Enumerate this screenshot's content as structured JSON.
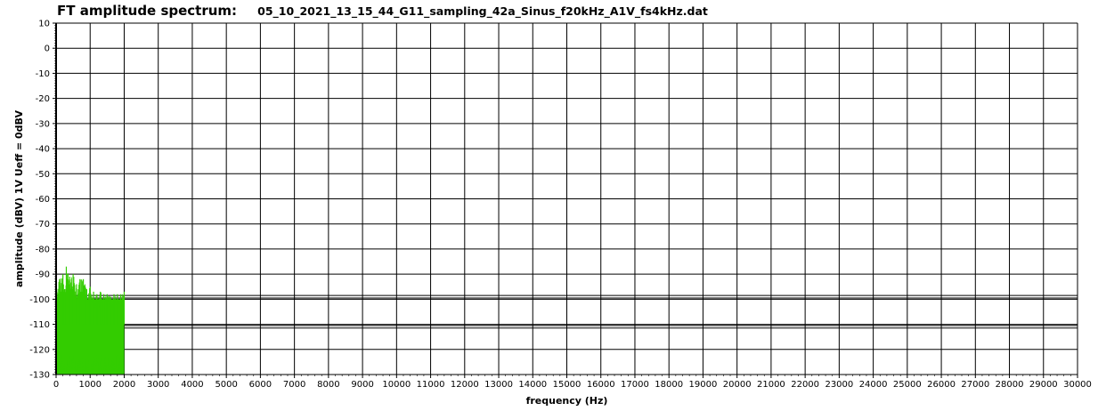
{
  "chart_data": {
    "type": "line",
    "title": "FT amplitude spectrum:",
    "subtitle": "05_10_2021_13_15_44_G11_sampling_42a_Sinus_f20kHz_A1V_fs4kHz.dat",
    "xlabel": "frequency (Hz)",
    "ylabel": "amplitude (dBV) 1V Ueff = 0dBV",
    "xlim": [
      0,
      30000
    ],
    "ylim": [
      -130,
      10
    ],
    "xticks": [
      0,
      1000,
      2000,
      3000,
      4000,
      5000,
      6000,
      7000,
      8000,
      9000,
      10000,
      11000,
      12000,
      13000,
      14000,
      15000,
      16000,
      17000,
      18000,
      19000,
      20000,
      21000,
      22000,
      23000,
      24000,
      25000,
      26000,
      27000,
      28000,
      29000,
      30000
    ],
    "yticks": [
      10,
      0,
      -10,
      -20,
      -30,
      -40,
      -50,
      -60,
      -70,
      -80,
      -90,
      -100,
      -110,
      -120,
      -130
    ],
    "grid": true,
    "reference_lines": [
      -98.5,
      -99.5,
      -110.5,
      -111.5
    ],
    "series": [
      {
        "color": "#33cc00",
        "noise_floor": {
          "x_range": [
            0,
            2000
          ],
          "y_range": [
            -130,
            -100
          ]
        },
        "x": [
          0,
          100,
          200,
          250,
          300,
          400,
          500,
          600,
          700,
          800,
          900,
          1000,
          1100,
          1200,
          1300,
          1400,
          1500,
          1600,
          1700,
          1800,
          1900,
          2000
        ],
        "y": [
          -95,
          -92,
          -90,
          -96,
          -87,
          -91,
          -90,
          -94,
          -92,
          -92,
          -96,
          -95,
          -97,
          -98,
          -97,
          -98,
          -98,
          -99,
          -98,
          -98,
          -98,
          -97
        ]
      }
    ],
    "colors": {
      "background": "#ffffff",
      "grid": "#000000",
      "signal": "#33cc00"
    }
  }
}
